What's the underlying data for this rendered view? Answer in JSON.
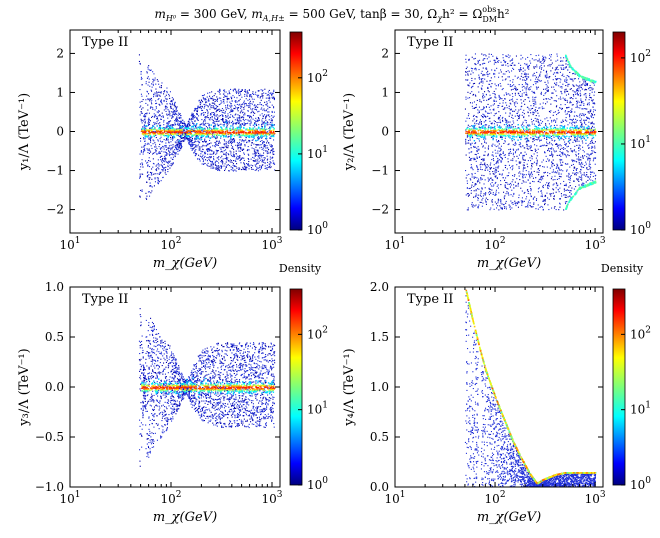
{
  "figure": {
    "title": "m_{H⁰} = 300 GeV,  m_{A,H±} = 500 GeV,  tanβ = 30,  Ω_χh² = Ω_DM^obs h²",
    "title_parts": {
      "mH": "m",
      "mH_sub": "H⁰",
      "mH_val": " = 300 GeV,  ",
      "mA": "m",
      "mA_sub": "A,H±",
      "mA_val": " = 500 GeV,  tanβ = 30,  Ω",
      "omega_sub": "χ",
      "omega_mid": "h² = Ω",
      "omega_obs_sup": "obs",
      "omega_obs_sub": "DM",
      "omega_end": "h²"
    },
    "colorbar_label": "Density"
  },
  "chart_data": [
    {
      "type": "scatter",
      "panel": "y1",
      "title": "",
      "annotation": "Type II",
      "xlabel": "m_χ(GeV)",
      "ylabel": "y₁/Λ (TeV⁻¹)",
      "xscale": "log",
      "xlim": [
        10,
        1200
      ],
      "ylim": [
        -2.6,
        2.6
      ],
      "xticks": [
        10,
        100,
        1000
      ],
      "xtick_labels": [
        "10",
        "10",
        "10"
      ],
      "xtick_sups": [
        "1",
        "2",
        "3"
      ],
      "yticks": [
        -2,
        -1,
        0,
        1,
        2
      ],
      "ytick_labels": [
        "−2",
        "−1",
        "0",
        "1",
        "2"
      ],
      "colorbar": {
        "scale": "log",
        "range": [
          1,
          400
        ],
        "ticks": [
          1,
          10,
          100
        ],
        "tick_labels": [
          "10",
          "10",
          "10"
        ],
        "tick_sups": [
          "0",
          "1",
          "2"
        ]
      },
      "envelope": {
        "x_range": [
          48,
          1050
        ],
        "upper_points": [
          [
            49,
            2.0
          ],
          [
            51,
            1.6
          ],
          [
            53,
            0.5
          ],
          [
            55,
            0.5
          ],
          [
            56,
            1.8
          ],
          [
            60,
            1.8
          ],
          [
            70,
            1.5
          ],
          [
            80,
            1.3
          ],
          [
            100,
            1.0
          ],
          [
            120,
            0.5
          ],
          [
            140,
            0.15
          ],
          [
            160,
            0.5
          ],
          [
            200,
            0.95
          ],
          [
            300,
            1.1
          ],
          [
            500,
            1.1
          ],
          [
            1000,
            1.1
          ]
        ],
        "lower_points": [
          [
            49,
            -2.0
          ],
          [
            51,
            -1.6
          ],
          [
            53,
            -0.5
          ],
          [
            55,
            -0.5
          ],
          [
            56,
            -1.8
          ],
          [
            60,
            -1.7
          ],
          [
            70,
            -1.4
          ],
          [
            80,
            -1.25
          ],
          [
            100,
            -0.9
          ],
          [
            120,
            -0.5
          ],
          [
            140,
            -0.15
          ],
          [
            160,
            -0.5
          ],
          [
            200,
            -0.85
          ],
          [
            300,
            -1.0
          ],
          [
            500,
            -1.0
          ],
          [
            1000,
            -1.0
          ]
        ],
        "density_ridge_y": 0.0,
        "ridge_start": 50
      }
    },
    {
      "type": "scatter",
      "panel": "y2",
      "annotation": "Type II",
      "xlabel": "m_χ(GeV)",
      "ylabel": "y₂/Λ (TeV⁻¹)",
      "xscale": "log",
      "xlim": [
        10,
        1200
      ],
      "ylim": [
        -2.6,
        2.6
      ],
      "xticks": [
        10,
        100,
        1000
      ],
      "xtick_labels": [
        "10",
        "10",
        "10"
      ],
      "xtick_sups": [
        "1",
        "2",
        "3"
      ],
      "yticks": [
        -2,
        -1,
        0,
        1,
        2
      ],
      "ytick_labels": [
        "−2",
        "−1",
        "0",
        "1",
        "2"
      ],
      "colorbar": {
        "scale": "log",
        "range": [
          1,
          200
        ],
        "ticks": [
          1,
          10,
          100
        ],
        "tick_labels": [
          "10",
          "10",
          "10"
        ],
        "tick_sups": [
          "0",
          "1",
          "2"
        ]
      },
      "envelope": {
        "x_range": [
          50,
          1000
        ],
        "upper_points": [
          [
            50,
            2.0
          ],
          [
            500,
            2.0
          ],
          [
            560,
            1.7
          ],
          [
            700,
            1.45
          ],
          [
            1000,
            1.3
          ]
        ],
        "lower_points": [
          [
            50,
            -2.0
          ],
          [
            500,
            -2.0
          ],
          [
            560,
            -1.75
          ],
          [
            700,
            -1.45
          ],
          [
            1000,
            -1.3
          ]
        ],
        "density_ridge_y": 0.0,
        "ridge_start": 50
      }
    },
    {
      "type": "scatter",
      "panel": "y3",
      "annotation": "Type II",
      "xlabel": "m_χ(GeV)",
      "ylabel": "y₃/Λ (TeV⁻¹)",
      "xscale": "log",
      "xlim": [
        10,
        1200
      ],
      "ylim": [
        -1.0,
        1.0
      ],
      "xticks": [
        10,
        100,
        1000
      ],
      "xtick_labels": [
        "10",
        "10",
        "10"
      ],
      "xtick_sups": [
        "1",
        "2",
        "3"
      ],
      "yticks": [
        -1.0,
        -0.5,
        0.0,
        0.5,
        1.0
      ],
      "ytick_labels": [
        "−1.0",
        "−0.5",
        "0.0",
        "0.5",
        "1.0"
      ],
      "colorbar": {
        "scale": "log",
        "range": [
          1,
          400
        ],
        "ticks": [
          1,
          10,
          100
        ],
        "tick_labels": [
          "10",
          "10",
          "10"
        ],
        "tick_sups": [
          "0",
          "1",
          "2"
        ]
      },
      "envelope": {
        "x_range": [
          48,
          1050
        ],
        "upper_points": [
          [
            49,
            0.8
          ],
          [
            51,
            0.65
          ],
          [
            53,
            0.2
          ],
          [
            55,
            0.2
          ],
          [
            56,
            0.75
          ],
          [
            60,
            0.75
          ],
          [
            70,
            0.6
          ],
          [
            80,
            0.5
          ],
          [
            100,
            0.4
          ],
          [
            120,
            0.2
          ],
          [
            140,
            0.06
          ],
          [
            160,
            0.2
          ],
          [
            200,
            0.38
          ],
          [
            300,
            0.45
          ],
          [
            500,
            0.45
          ],
          [
            1000,
            0.45
          ]
        ],
        "lower_points": [
          [
            49,
            -0.8
          ],
          [
            51,
            -0.65
          ],
          [
            53,
            -0.2
          ],
          [
            55,
            -0.2
          ],
          [
            56,
            -0.75
          ],
          [
            60,
            -0.7
          ],
          [
            70,
            -0.55
          ],
          [
            80,
            -0.5
          ],
          [
            100,
            -0.35
          ],
          [
            120,
            -0.2
          ],
          [
            140,
            -0.06
          ],
          [
            160,
            -0.2
          ],
          [
            200,
            -0.33
          ],
          [
            300,
            -0.4
          ],
          [
            500,
            -0.4
          ],
          [
            1000,
            -0.4
          ]
        ],
        "density_ridge_y": 0.0,
        "ridge_start": 50
      }
    },
    {
      "type": "scatter",
      "panel": "y4",
      "annotation": "Type II",
      "xlabel": "m_χ(GeV)",
      "ylabel": "y₄/Λ (TeV⁻¹)",
      "xscale": "log",
      "xlim": [
        10,
        1200
      ],
      "ylim": [
        0.0,
        2.0
      ],
      "xticks": [
        10,
        100,
        1000
      ],
      "xtick_labels": [
        "10",
        "10",
        "10"
      ],
      "xtick_sups": [
        "1",
        "2",
        "3"
      ],
      "yticks": [
        0.0,
        0.5,
        1.0,
        1.5,
        2.0
      ],
      "ytick_labels": [
        "0.0",
        "0.5",
        "1.0",
        "1.5",
        "2.0"
      ],
      "colorbar": {
        "scale": "log",
        "range": [
          1,
          400
        ],
        "ticks": [
          1,
          10,
          100
        ],
        "tick_labels": [
          "10",
          "10",
          "10"
        ],
        "tick_sups": [
          "0",
          "1",
          "2"
        ]
      },
      "curve": {
        "upper_points": [
          [
            50,
            2.0
          ],
          [
            60,
            1.65
          ],
          [
            70,
            1.38
          ],
          [
            80,
            1.17
          ],
          [
            100,
            0.9
          ],
          [
            120,
            0.7
          ],
          [
            150,
            0.46
          ],
          [
            180,
            0.3
          ],
          [
            220,
            0.14
          ],
          [
            260,
            0.04
          ],
          [
            300,
            0.08
          ],
          [
            400,
            0.13
          ],
          [
            500,
            0.15
          ],
          [
            1000,
            0.15
          ]
        ],
        "gap_x": [
          68,
          72
        ]
      }
    }
  ]
}
